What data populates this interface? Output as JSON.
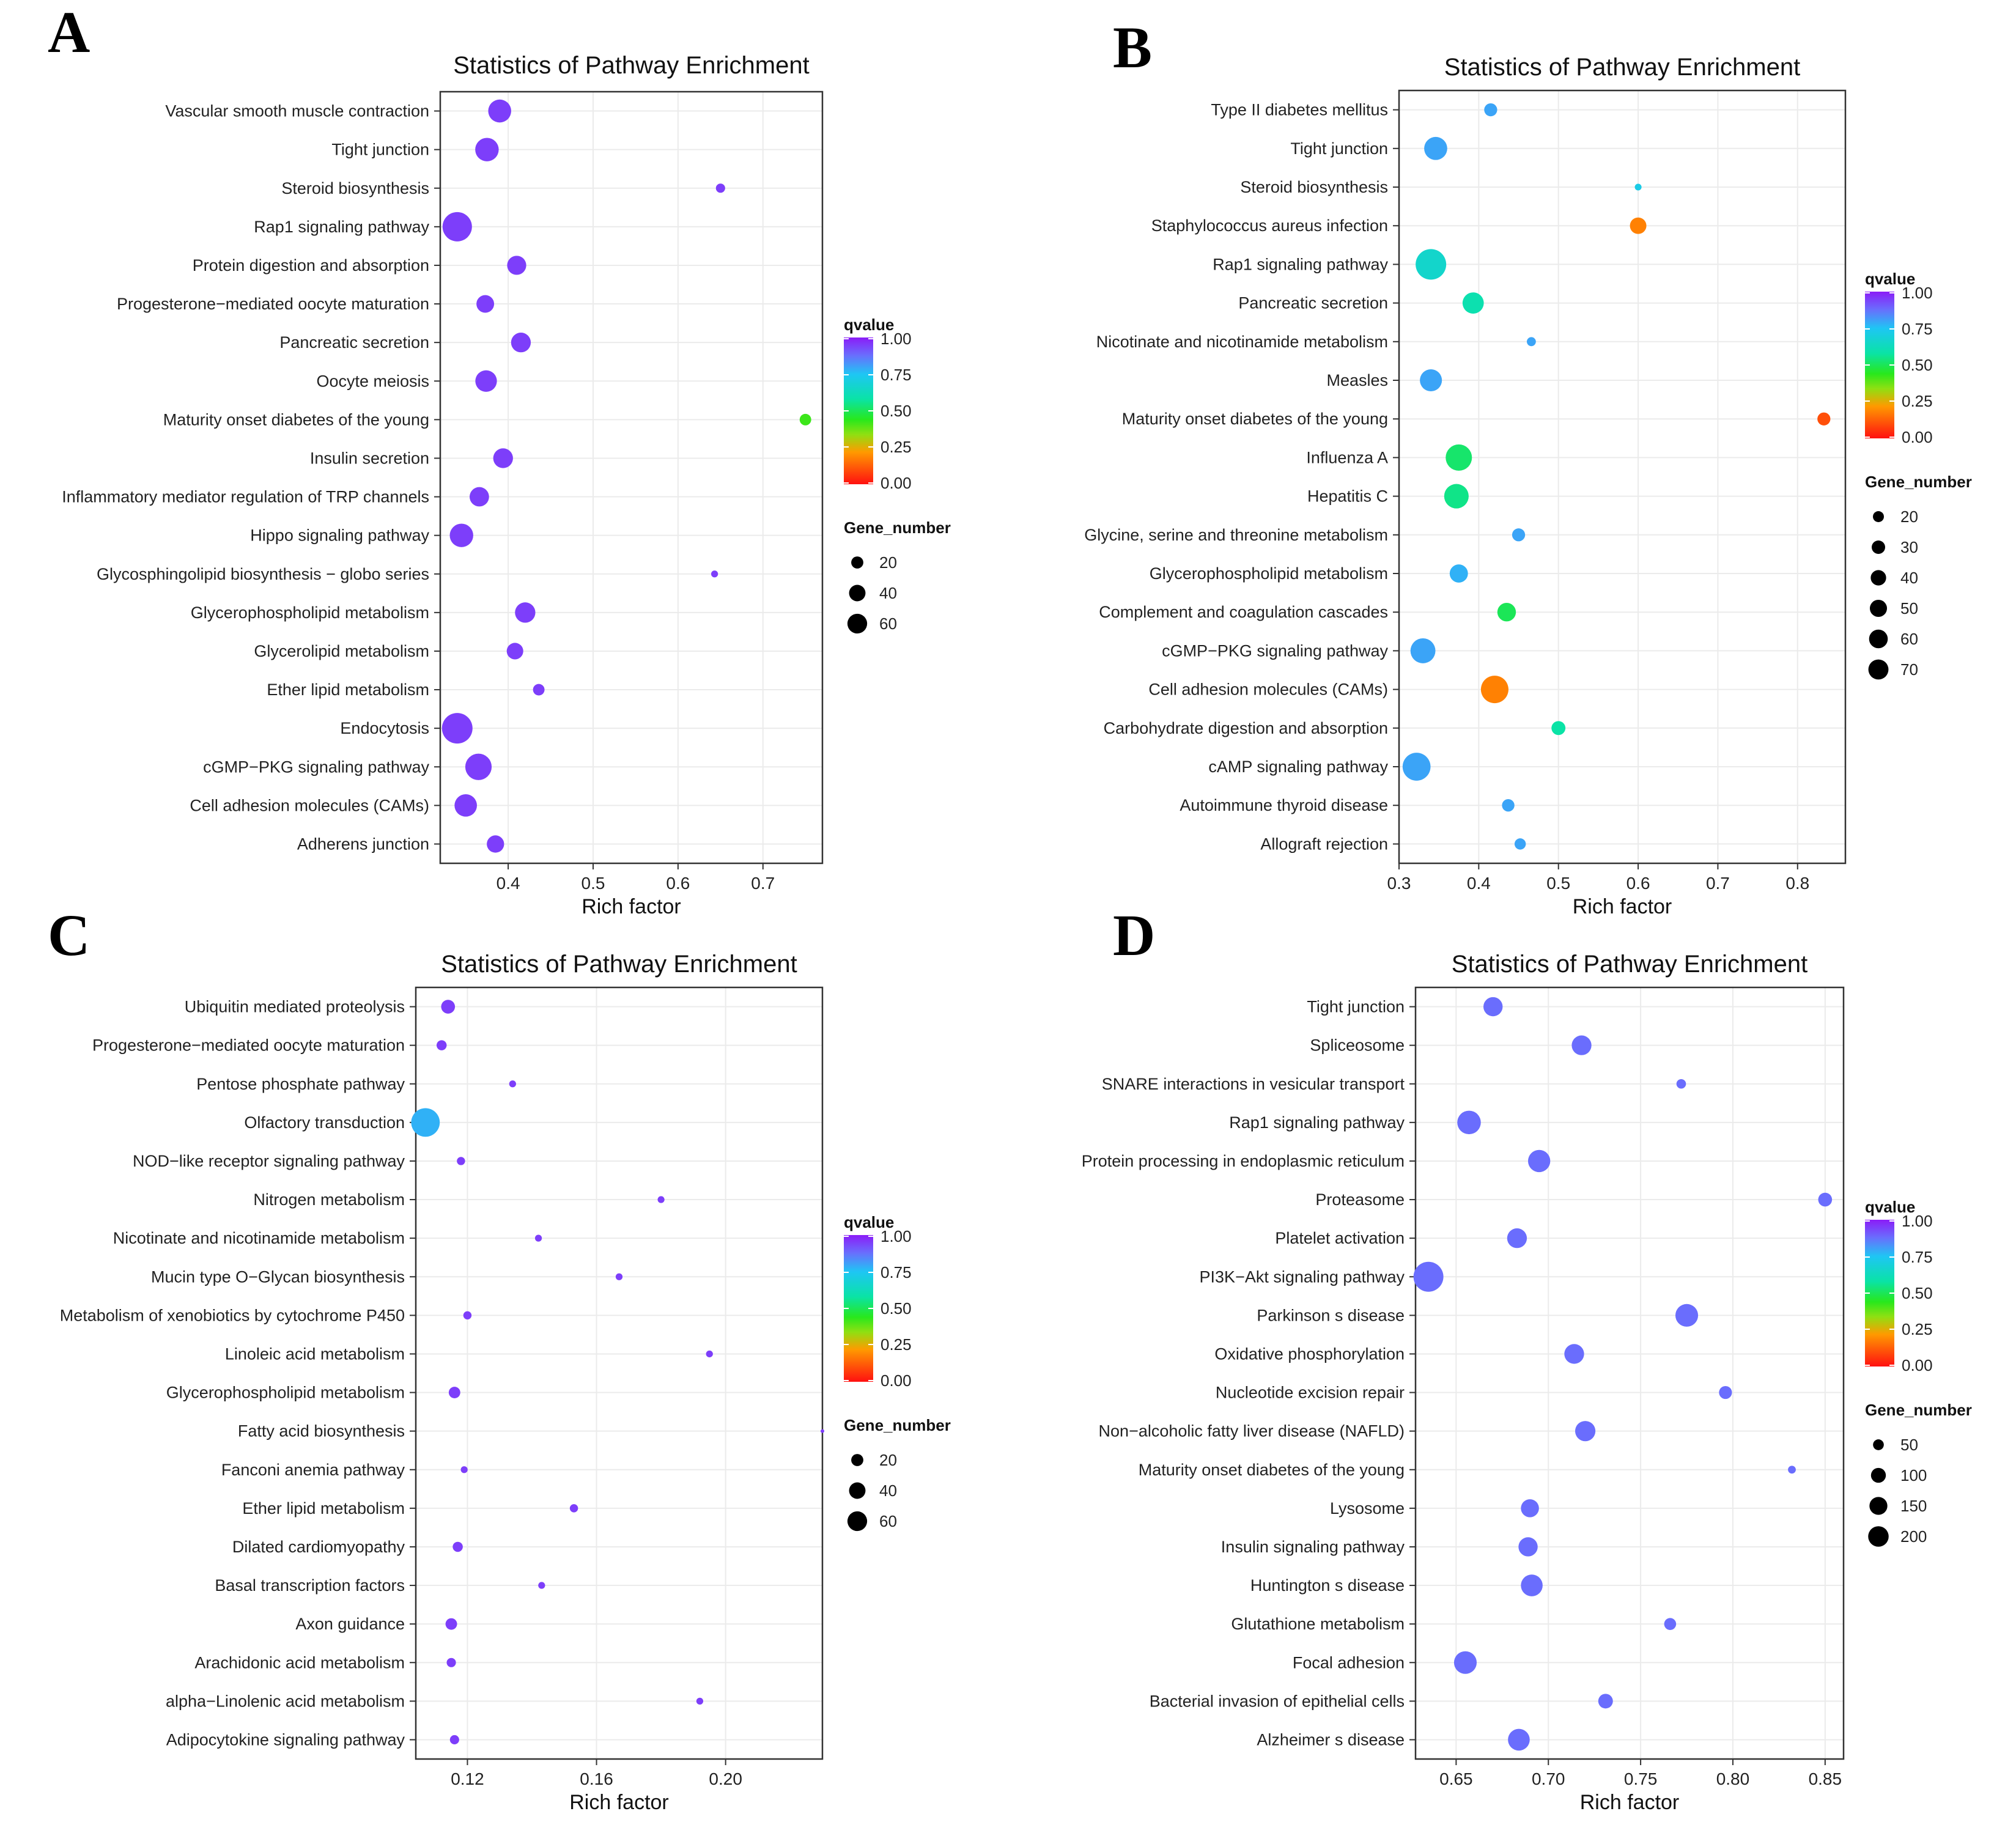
{
  "chart_data": [
    {
      "panel": "A",
      "type": "scatter",
      "title": "Statistics of Pathway Enrichment",
      "xlabel": "Rich factor",
      "xlim": [
        0.32,
        0.77
      ],
      "xticks": [
        "0.4",
        "0.5",
        "0.6",
        "0.7"
      ],
      "xtick_values": [
        0.4,
        0.5,
        0.6,
        0.7
      ],
      "categories": [
        "Vascular smooth muscle contraction",
        "Tight junction",
        "Steroid biosynthesis",
        "Rap1 signaling pathway",
        "Protein digestion and absorption",
        "Progesterone−mediated oocyte maturation",
        "Pancreatic secretion",
        "Oocyte meiosis",
        "Maturity onset diabetes of the young",
        "Insulin secretion",
        "Inflammatory mediator regulation of TRP channels",
        "Hippo signaling pathway",
        "Glycosphingolipid biosynthesis − globo series",
        "Glycerophospholipid metabolism",
        "Glycerolipid metabolism",
        "Ether lipid metabolism",
        "Endocytosis",
        "cGMP−PKG signaling pathway",
        "Cell adhesion molecules (CAMs)",
        "Adherens junction"
      ],
      "rich_factor": [
        0.39,
        0.375,
        0.65,
        0.34,
        0.41,
        0.373,
        0.415,
        0.374,
        0.75,
        0.394,
        0.366,
        0.345,
        0.643,
        0.42,
        0.408,
        0.436,
        0.34,
        0.365,
        0.35,
        0.385
      ],
      "gene_number": [
        38,
        40,
        5,
        66,
        25,
        21,
        27,
        33,
        8,
        27,
        26,
        40,
        3,
        29,
        18,
        8,
        72,
        52,
        36,
        20
      ],
      "qvalue": [
        0.95,
        0.95,
        0.95,
        0.95,
        0.95,
        0.95,
        0.95,
        0.95,
        0.42,
        0.95,
        0.95,
        0.95,
        0.95,
        0.95,
        0.95,
        0.95,
        0.95,
        0.95,
        0.95,
        0.95
      ],
      "legend": {
        "qvalue_title": "qvalue",
        "qvalue_ticks": [
          "1.00",
          "0.75",
          "0.50",
          "0.25",
          "0.00"
        ],
        "gene_title": "Gene_number",
        "gene_values": [
          20,
          40,
          60
        ],
        "gene_labels": [
          "20",
          "40",
          "60"
        ],
        "size_range": [
          2,
          72
        ]
      }
    },
    {
      "panel": "B",
      "type": "scatter",
      "title": "Statistics of Pathway Enrichment",
      "xlabel": "Rich factor",
      "xlim": [
        0.3,
        0.86
      ],
      "xticks": [
        "0.3",
        "0.4",
        "0.5",
        "0.6",
        "0.7",
        "0.8"
      ],
      "xtick_values": [
        0.3,
        0.4,
        0.5,
        0.6,
        0.7,
        0.8
      ],
      "categories": [
        "Type II diabetes mellitus",
        "Tight junction",
        "Steroid biosynthesis",
        "Staphylococcus aureus infection",
        "Rap1 signaling pathway",
        "Pancreatic secretion",
        "Nicotinate and nicotinamide metabolism",
        "Measles",
        "Maturity onset diabetes of the young",
        "Influenza A",
        "Hepatitis C",
        "Glycine, serine and threonine metabolism",
        "Glycerophospholipid metabolism",
        "Complement and coagulation cascades",
        "cGMP−PKG signaling pathway",
        "Cell adhesion molecules (CAMs)",
        "Carbohydrate digestion and absorption",
        "cAMP signaling pathway",
        "Autoimmune thyroid disease",
        "Allograft rejection"
      ],
      "rich_factor": [
        0.415,
        0.346,
        0.6,
        0.6,
        0.34,
        0.393,
        0.466,
        0.34,
        0.833,
        0.375,
        0.372,
        0.45,
        0.375,
        0.435,
        0.33,
        0.42,
        0.5,
        0.322,
        0.437,
        0.452
      ],
      "gene_number": [
        14,
        44,
        6,
        22,
        80,
        37,
        8,
        40,
        14,
        58,
        50,
        14,
        27,
        28,
        52,
        64,
        16,
        66,
        13,
        11
      ],
      "qvalue": [
        0.8,
        0.8,
        0.72,
        0.18,
        0.66,
        0.6,
        0.8,
        0.8,
        0.1,
        0.52,
        0.55,
        0.8,
        0.78,
        0.5,
        0.8,
        0.18,
        0.58,
        0.8,
        0.8,
        0.8
      ],
      "legend": {
        "qvalue_title": "qvalue",
        "qvalue_ticks": [
          "1.00",
          "0.75",
          "0.50",
          "0.25",
          "0.00"
        ],
        "gene_title": "Gene_number",
        "gene_values": [
          20,
          30,
          40,
          50,
          60,
          70
        ],
        "gene_labels": [
          "20",
          "30",
          "40",
          "50",
          "60",
          "70"
        ],
        "size_range": [
          5,
          80
        ]
      }
    },
    {
      "panel": "C",
      "type": "scatter",
      "title": "Statistics of Pathway Enrichment",
      "xlabel": "Rich factor",
      "xlim": [
        0.104,
        0.23
      ],
      "xticks": [
        "0.12",
        "0.16",
        "0.20"
      ],
      "xtick_values": [
        0.12,
        0.16,
        0.2
      ],
      "categories": [
        "Ubiquitin mediated proteolysis",
        "Progesterone−mediated oocyte maturation",
        "Pentose phosphate pathway",
        "Olfactory transduction",
        "NOD−like receptor signaling pathway",
        "Nitrogen metabolism",
        "Nicotinate and nicotinamide metabolism",
        "Mucin type O−Glycan biosynthesis",
        "Metabolism of xenobiotics by cytochrome P450",
        "Linoleic acid metabolism",
        "Glycerophospholipid metabolism",
        "Fatty acid biosynthesis",
        "Fanconi anemia pathway",
        "Ether lipid metabolism",
        "Dilated cardiomyopathy",
        "Basal transcription factors",
        "Axon guidance",
        "Arachidonic acid metabolism",
        "alpha−Linolenic acid metabolism",
        "Adipocytokine signaling pathway"
      ],
      "rich_factor": [
        0.114,
        0.112,
        0.134,
        0.107,
        0.118,
        0.18,
        0.142,
        0.167,
        0.12,
        0.195,
        0.116,
        0.23,
        0.119,
        0.153,
        0.117,
        0.143,
        0.115,
        0.115,
        0.192,
        0.116
      ],
      "gene_number": [
        12,
        6,
        3,
        62,
        4,
        3,
        3,
        3,
        4,
        3,
        8,
        2,
        3,
        4,
        6,
        3,
        8,
        5,
        3,
        5
      ],
      "qvalue": [
        0.95,
        0.95,
        0.95,
        0.78,
        0.95,
        0.95,
        0.95,
        0.95,
        0.95,
        0.95,
        0.95,
        0.95,
        0.95,
        0.95,
        0.95,
        0.95,
        0.95,
        0.95,
        0.95,
        0.95
      ],
      "legend": {
        "qvalue_title": "qvalue",
        "qvalue_ticks": [
          "1.00",
          "0.75",
          "0.50",
          "0.25",
          "0.00"
        ],
        "gene_title": "Gene_number",
        "gene_values": [
          20,
          40,
          60
        ],
        "gene_labels": [
          "20",
          "40",
          "60"
        ],
        "size_range": [
          2,
          72
        ]
      }
    },
    {
      "panel": "D",
      "type": "scatter",
      "title": "Statistics of Pathway Enrichment",
      "xlabel": "Rich factor",
      "xlim": [
        0.628,
        0.86
      ],
      "xticks": [
        "0.65",
        "0.70",
        "0.75",
        "0.80",
        "0.85"
      ],
      "xtick_values": [
        0.65,
        0.7,
        0.75,
        0.8,
        0.85
      ],
      "categories": [
        "Tight junction",
        "Spliceosome",
        "SNARE interactions in vesicular transport",
        "Rap1 signaling pathway",
        "Protein processing in endoplasmic reticulum",
        "Proteasome",
        "Platelet activation",
        "PI3K−Akt signaling pathway",
        "Parkinson s disease",
        "Oxidative phosphorylation",
        "Nucleotide excision repair",
        "Non−alcoholic fatty liver disease (NAFLD)",
        "Maturity onset diabetes of the young",
        "Lysosome",
        "Insulin signaling pathway",
        "Huntington s disease",
        "Glutathione metabolism",
        "Focal adhesion",
        "Bacterial invasion of epithelial cells",
        "Alzheimer s disease"
      ],
      "rich_factor": [
        0.67,
        0.718,
        0.772,
        0.657,
        0.695,
        0.85,
        0.683,
        0.635,
        0.775,
        0.714,
        0.796,
        0.72,
        0.832,
        0.69,
        0.689,
        0.691,
        0.766,
        0.655,
        0.731,
        0.684
      ],
      "gene_number": [
        80,
        85,
        20,
        125,
        110,
        40,
        85,
        210,
        115,
        85,
        35,
        90,
        15,
        70,
        80,
        105,
        30,
        115,
        45,
        105
      ],
      "qvalue": [
        0.88,
        0.88,
        0.88,
        0.88,
        0.88,
        0.88,
        0.88,
        0.88,
        0.88,
        0.88,
        0.88,
        0.88,
        0.88,
        0.88,
        0.88,
        0.88,
        0.88,
        0.88,
        0.88,
        0.88
      ],
      "legend": {
        "qvalue_title": "qvalue",
        "qvalue_ticks": [
          "1.00",
          "0.75",
          "0.50",
          "0.25",
          "0.00"
        ],
        "gene_title": "Gene_number",
        "gene_values": [
          50,
          100,
          150,
          200
        ],
        "gene_labels": [
          "50",
          "100",
          "150",
          "200"
        ],
        "size_range": [
          10,
          220
        ]
      }
    }
  ]
}
